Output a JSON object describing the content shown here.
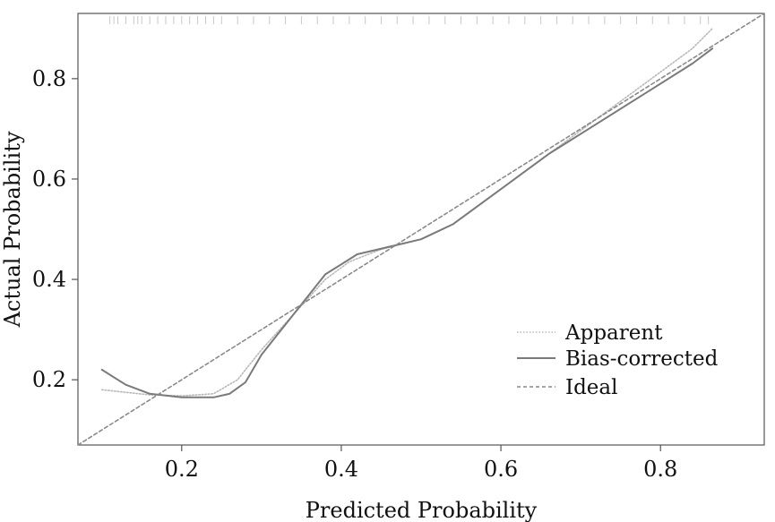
{
  "chart_data": {
    "type": "line",
    "xlabel": "Predicted Probability",
    "ylabel": "Actual Probability",
    "xlim": [
      0.07,
      0.93
    ],
    "ylim": [
      0.07,
      0.93
    ],
    "xticks": [
      "0.2",
      "0.4",
      "0.6",
      "0.8"
    ],
    "yticks": [
      "0.2",
      "0.4",
      "0.6",
      "0.8"
    ],
    "grid": false,
    "legend_position": "bottom-right",
    "series": [
      {
        "name": "Apparent",
        "style": "dotted",
        "color": "#b8b8b8",
        "x": [
          0.1,
          0.13,
          0.16,
          0.2,
          0.24,
          0.27,
          0.3,
          0.34,
          0.38,
          0.41,
          0.45,
          0.5,
          0.54,
          0.6,
          0.66,
          0.72,
          0.78,
          0.84,
          0.865
        ],
        "y": [
          0.18,
          0.175,
          0.17,
          0.168,
          0.172,
          0.2,
          0.26,
          0.33,
          0.4,
          0.435,
          0.46,
          0.48,
          0.51,
          0.58,
          0.65,
          0.72,
          0.79,
          0.86,
          0.9
        ]
      },
      {
        "name": "Bias-corrected",
        "style": "solid",
        "color": "#7a7a7a",
        "x": [
          0.1,
          0.13,
          0.16,
          0.2,
          0.24,
          0.26,
          0.28,
          0.3,
          0.34,
          0.38,
          0.42,
          0.46,
          0.5,
          0.54,
          0.6,
          0.66,
          0.72,
          0.78,
          0.84,
          0.865
        ],
        "y": [
          0.22,
          0.19,
          0.172,
          0.165,
          0.165,
          0.172,
          0.195,
          0.25,
          0.33,
          0.41,
          0.45,
          0.465,
          0.48,
          0.51,
          0.58,
          0.65,
          0.71,
          0.77,
          0.83,
          0.86
        ]
      },
      {
        "name": "Ideal",
        "style": "dashed",
        "color": "#8a8a8a",
        "x": [
          0.07,
          0.93
        ],
        "y": [
          0.07,
          0.93
        ]
      }
    ],
    "rug_x": [
      0.11,
      0.115,
      0.12,
      0.13,
      0.14,
      0.145,
      0.15,
      0.16,
      0.17,
      0.18,
      0.19,
      0.2,
      0.21,
      0.22,
      0.23,
      0.24,
      0.25,
      0.27,
      0.29,
      0.31,
      0.33,
      0.35,
      0.37,
      0.39,
      0.41,
      0.43,
      0.45,
      0.47,
      0.49,
      0.51,
      0.53,
      0.55,
      0.57,
      0.59,
      0.61,
      0.63,
      0.65,
      0.67,
      0.69,
      0.71,
      0.73,
      0.75,
      0.77,
      0.79,
      0.81,
      0.83,
      0.85,
      0.86
    ]
  }
}
